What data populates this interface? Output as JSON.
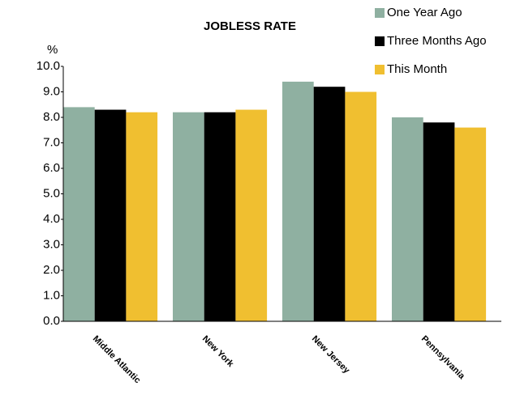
{
  "chart_data": {
    "type": "bar",
    "title": "JOBLESS RATE",
    "y_label": "%",
    "categories": [
      "Middle Atlantic",
      "New York",
      "New Jersey",
      "Pennsylvania"
    ],
    "series": [
      {
        "name": "One Year Ago",
        "color": "#8fb0a1",
        "values": [
          8.4,
          8.2,
          9.4,
          8.0
        ]
      },
      {
        "name": "Three Months Ago",
        "color": "#000000",
        "values": [
          8.3,
          8.2,
          9.2,
          7.8
        ]
      },
      {
        "name": "This Month",
        "color": "#f0bf30",
        "values": [
          8.2,
          8.3,
          9.0,
          7.6
        ]
      }
    ],
    "ylim": [
      0,
      10
    ],
    "yticks": [
      {
        "value": 0,
        "label": "0.0"
      },
      {
        "value": 1,
        "label": "1.0"
      },
      {
        "value": 2,
        "label": "2.0"
      },
      {
        "value": 3,
        "label": "3.0"
      },
      {
        "value": 4,
        "label": "4.0"
      },
      {
        "value": 5,
        "label": "5.0"
      },
      {
        "value": 6,
        "label": "6.0"
      },
      {
        "value": 7,
        "label": "7.0"
      },
      {
        "value": 8,
        "label": "8.0"
      },
      {
        "value": 9,
        "label": "9.0"
      },
      {
        "value": 10,
        "label": "10.0"
      }
    ],
    "legend": "top-right"
  }
}
